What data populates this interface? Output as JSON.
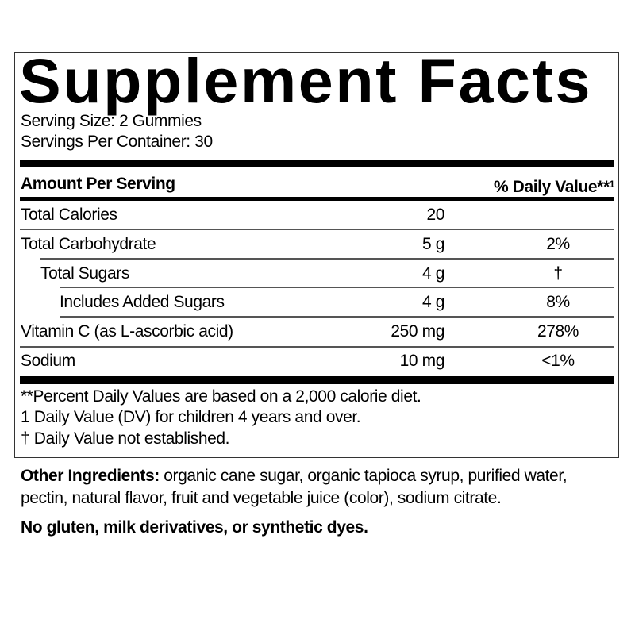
{
  "title": "Supplement Facts",
  "serving_size": "Serving Size: 2 Gummies",
  "servings_per_container": "Servings Per Container: 30",
  "header": {
    "amount": "Amount Per Serving",
    "daily_value": "% Daily Value**",
    "daily_value_sup": "1"
  },
  "rows": [
    {
      "name": "Total Calories",
      "amount": "20",
      "dv": ""
    },
    {
      "name": "Total Carbohydrate",
      "amount": "5 g",
      "dv": "2%"
    },
    {
      "name": "Total Sugars",
      "amount": "4 g",
      "dv": "†"
    },
    {
      "name": "Includes Added Sugars",
      "amount": "4 g",
      "dv": "8%"
    },
    {
      "name": "Vitamin C (as L-ascorbic acid)",
      "amount": "250 mg",
      "dv": "278%"
    },
    {
      "name": "Sodium",
      "amount": "10 mg",
      "dv": "<1%"
    }
  ],
  "footnotes": [
    "**Percent Daily Values are based on a 2,000 calorie diet.",
    "1 Daily Value (DV) for children 4 years and over.",
    "† Daily Value not established."
  ],
  "other_ingredients": {
    "label": "Other Ingredients:",
    "line1": " organic cane sugar, organic tapioca syrup, purified water,",
    "line2": "pectin, natural flavor, fruit and vegetable juice (color), sodium citrate."
  },
  "allergen_statement": "No gluten, milk derivatives, or synthetic dyes."
}
